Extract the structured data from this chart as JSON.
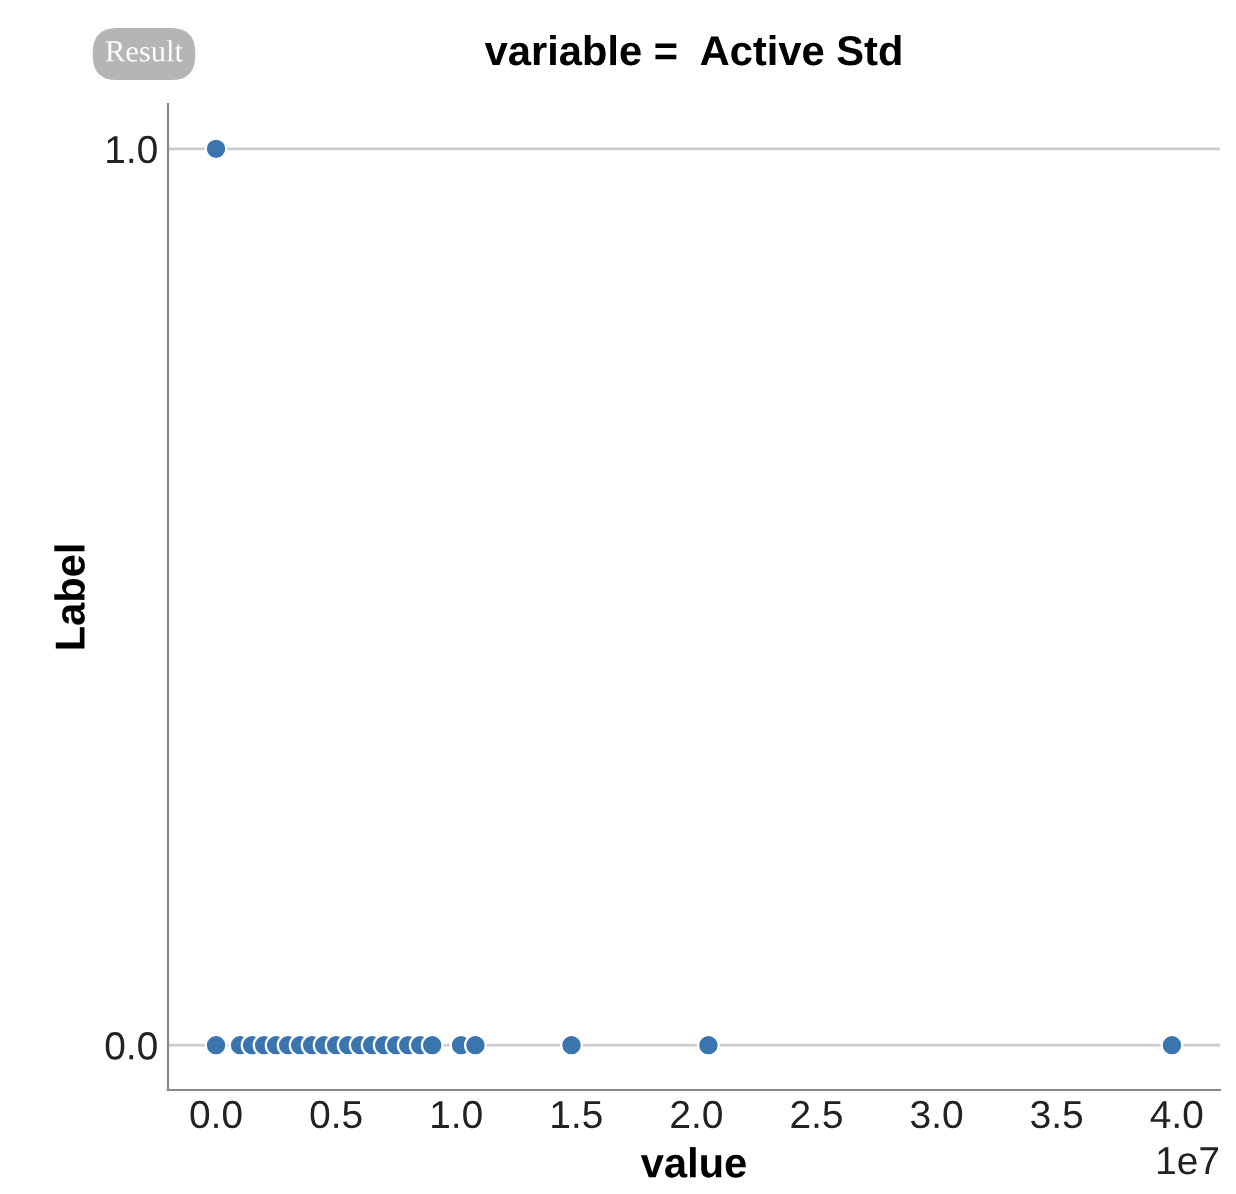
{
  "chart_data": {
    "type": "scatter",
    "title": "variable =  Active Std",
    "xlabel": "value",
    "ylabel": "Label",
    "x": [
      0,
      0.1,
      0.15,
      0.2,
      0.25,
      0.3,
      0.35,
      0.4,
      0.45,
      0.5,
      0.55,
      0.6,
      0.65,
      0.7,
      0.75,
      0.8,
      0.85,
      0.9,
      1.02,
      1.08,
      1.48,
      2.05,
      3.98,
      0
    ],
    "series": [
      {
        "color": "#3b75af",
        "values": [
          0,
          0,
          0,
          0,
          0,
          0,
          0,
          0,
          0,
          0,
          0,
          0,
          0,
          0,
          0,
          0,
          0,
          0,
          0,
          0,
          0,
          0,
          0,
          1
        ]
      }
    ],
    "xlim": [
      -0.2,
      4.18
    ],
    "ylim": [
      -0.05,
      1.05
    ],
    "xticks": [
      {
        "value": 0,
        "label": "0.0"
      },
      0.5,
      {
        "value": 1,
        "label": "1.0"
      },
      1.5,
      {
        "value": 2,
        "label": "2.0"
      },
      2.5,
      {
        "value": 3,
        "label": "3.0"
      },
      3.5,
      {
        "value": 4,
        "label": "4.0"
      }
    ],
    "yticks": [
      {
        "value": 0,
        "label": "0.0"
      },
      {
        "value": 1,
        "label": "1.0"
      }
    ],
    "grid": "y",
    "marker": "circle",
    "annotations": [
      "1e7",
      "Result"
    ]
  }
}
